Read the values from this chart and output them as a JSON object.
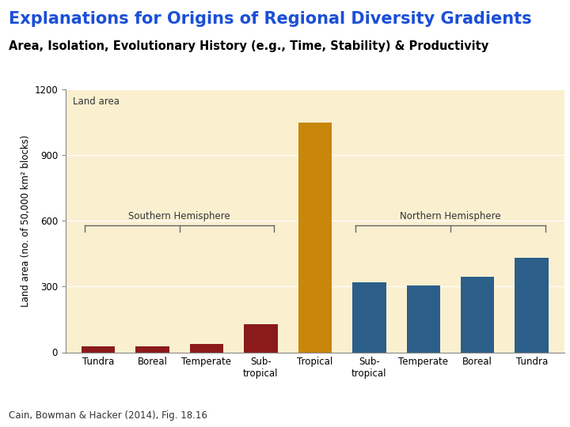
{
  "title": "Explanations for Origins of Regional Diversity Gradients",
  "subtitle": "Area, Isolation, Evolutionary History (e.g., Time, Stability) & Productivity",
  "title_color": "#1a4fd6",
  "subtitle_color": "#000000",
  "chart_title": "Land area",
  "ylabel": "Land area (no. of 50,000 km² blocks)",
  "categories": [
    "Tundra",
    "Boreal",
    "Temperate",
    "Sub-\ntropical",
    "Tropical",
    "Sub-\ntropical",
    "Temperate",
    "Boreal",
    "Tundra"
  ],
  "values": [
    28,
    26,
    38,
    130,
    1050,
    320,
    305,
    345,
    430
  ],
  "bar_colors": [
    "#8B1A1A",
    "#8B1A1A",
    "#8B1A1A",
    "#8B1A1A",
    "#C8860A",
    "#2B5F8A",
    "#2B5F8A",
    "#2B5F8A",
    "#2B5F8A"
  ],
  "background_color": "#FAF0D0",
  "ylim": [
    0,
    1200
  ],
  "yticks": [
    0,
    300,
    600,
    900,
    1200
  ],
  "southern_label": "Southern Hemisphere",
  "northern_label": "Northern Hemisphere",
  "caption": "Cain, Bowman & Hacker (2014), Fig. 18.16"
}
